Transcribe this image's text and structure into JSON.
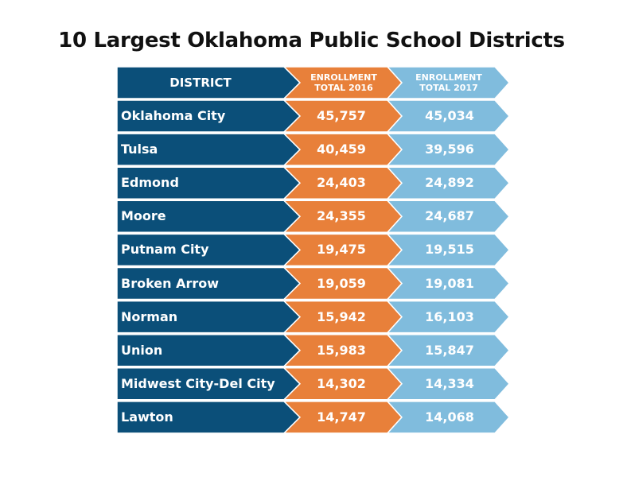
{
  "title": "10 Largest Oklahoma Public School Districts",
  "colors": {
    "district": "#0b4f79",
    "total_2016": "#e8803a",
    "total_2017": "#80bcdd"
  },
  "chart_data": {
    "type": "table",
    "title": "10 Largest Oklahoma Public School Districts",
    "columns": [
      "DISTRICT",
      "ENROLLMENT TOTAL 2016",
      "ENROLLMENT TOTAL 2017"
    ],
    "header": {
      "district": "DISTRICT",
      "h2016_l1": "ENROLLMENT",
      "h2016_l2": "TOTAL 2016",
      "h2017_l1": "ENROLLMENT",
      "h2017_l2": "TOTAL 2017"
    },
    "rows": [
      {
        "district": "Oklahoma City",
        "y2016": "45,757",
        "y2017": "45,034"
      },
      {
        "district": "Tulsa",
        "y2016": "40,459",
        "y2017": "39,596"
      },
      {
        "district": "Edmond",
        "y2016": "24,403",
        "y2017": "24,892"
      },
      {
        "district": "Moore",
        "y2016": "24,355",
        "y2017": "24,687"
      },
      {
        "district": "Putnam City",
        "y2016": "19,475",
        "y2017": "19,515"
      },
      {
        "district": "Broken Arrow",
        "y2016": "19,059",
        "y2017": "19,081"
      },
      {
        "district": "Norman",
        "y2016": "15,942",
        "y2017": "16,103"
      },
      {
        "district": "Union",
        "y2016": "15,983",
        "y2017": "15,847"
      },
      {
        "district": "Midwest City-Del City",
        "y2016": "14,302",
        "y2017": "14,334"
      },
      {
        "district": "Lawton",
        "y2016": "14,747",
        "y2017": "14,068"
      }
    ]
  }
}
